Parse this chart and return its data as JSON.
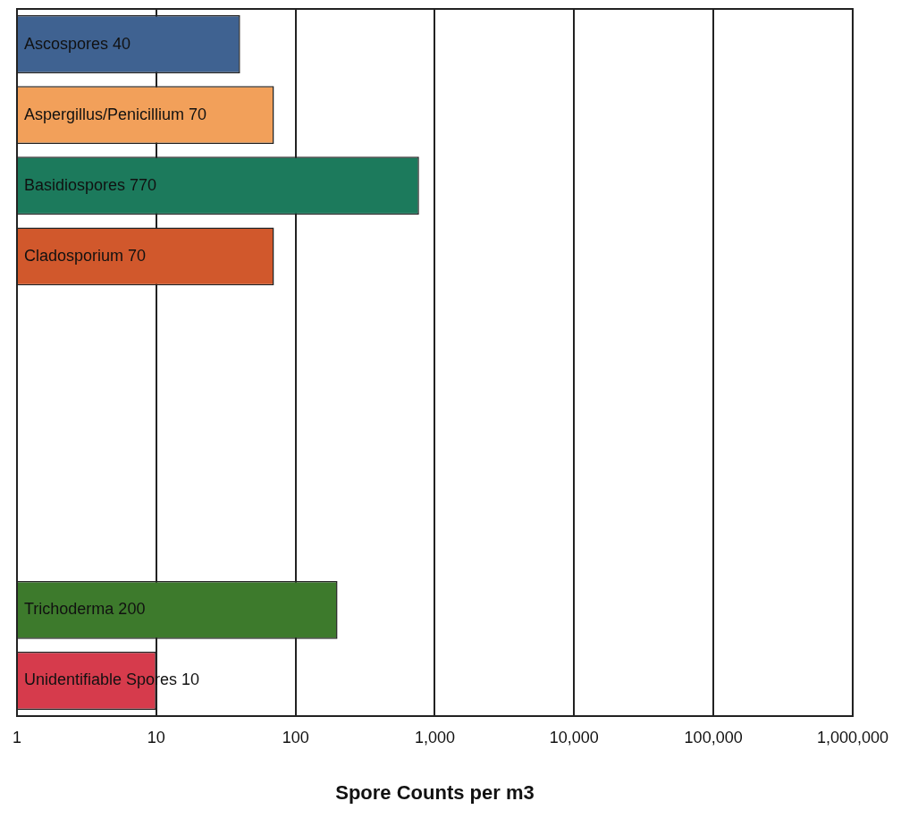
{
  "chart_data": {
    "type": "bar",
    "orientation": "horizontal",
    "log": "x",
    "xlabel": "Spore Counts per m3",
    "categories": [
      "Ascospores 40",
      "Aspergillus/Penicillium 70",
      "Basidiospores 770",
      "Cladosporium 70",
      null,
      null,
      null,
      null,
      "Trichoderma 200",
      "Unidentifiable Spores 10"
    ],
    "values": [
      40,
      70,
      770,
      70,
      null,
      null,
      null,
      null,
      200,
      10
    ],
    "colors": [
      "#3f6291",
      "#f2a05a",
      "#1c7a5c",
      "#d1582c",
      "#ffffff",
      "#ffffff",
      "#ffffff",
      "#ffffff",
      "#3d7a2c",
      "#d63b4c"
    ],
    "xlim": [
      1,
      1000000
    ],
    "xticks": [
      1,
      10,
      100,
      {
        "value": 1000,
        "label": "1,000"
      },
      {
        "value": 10000,
        "label": "10,000"
      },
      {
        "value": 100000,
        "label": "100,000"
      },
      {
        "value": 1000000,
        "label": "1,000,000"
      }
    ],
    "grid": "x",
    "tick_labels": "x",
    "legend": false
  }
}
